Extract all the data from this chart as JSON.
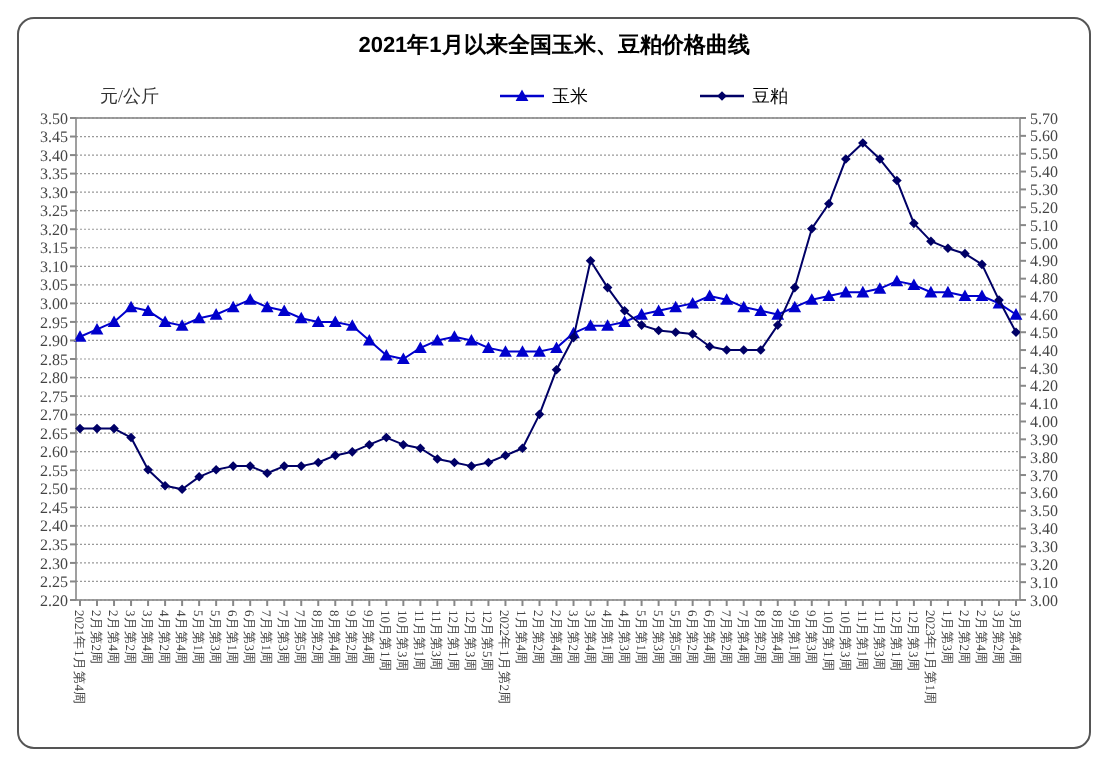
{
  "chart_data": {
    "type": "line",
    "title": "2021年1月以来全国玉米、豆粕价格曲线",
    "ylabel": "元/公斤",
    "categories": [
      "2021年1月第4周",
      "2月第2周",
      "2月第4周",
      "3月第2周",
      "3月第4周",
      "4月第2周",
      "4月第4周",
      "5月第1周",
      "5月第3周",
      "6月第1周",
      "6月第3周",
      "7月第1周",
      "7月第3周",
      "7月第5周",
      "8月第2周",
      "8月第4周",
      "9月第2周",
      "9月第4周",
      "10月第1周",
      "10月第3周",
      "11月第1周",
      "11月第3周",
      "12月第1周",
      "12月第3周",
      "12月第5周",
      "2022年1月第2周",
      "1月第4周",
      "2月第2周",
      "2月第4周",
      "3月第2周",
      "3月第4周",
      "4月第1周",
      "4月第3周",
      "5月第1周",
      "5月第3周",
      "5月第5周",
      "6月第2周",
      "6月第4周",
      "7月第2周",
      "7月第4周",
      "8月第2周",
      "8月第4周",
      "9月第1周",
      "9月第3周",
      "10月第1周",
      "10月第3周",
      "11月第1周",
      "11月第3周",
      "12月第1周",
      "12月第3周",
      "2023年1月第1周",
      "1月第3周",
      "2月第2周",
      "2月第4周",
      "3月第2周",
      "3月第4周"
    ],
    "series": [
      {
        "name": "玉米",
        "color": "#0000cc",
        "marker": "triangle",
        "values": [
          2.91,
          2.93,
          2.95,
          2.99,
          2.98,
          2.95,
          2.94,
          2.96,
          2.97,
          2.99,
          3.01,
          2.99,
          2.98,
          2.96,
          2.95,
          2.95,
          2.94,
          2.9,
          2.86,
          2.85,
          2.88,
          2.9,
          2.91,
          2.9,
          2.88,
          2.87,
          2.87,
          2.87,
          2.88,
          2.92,
          2.94,
          2.94,
          2.95,
          2.97,
          2.98,
          2.99,
          3.0,
          3.02,
          3.01,
          2.99,
          2.98,
          2.97,
          2.99,
          3.01,
          3.02,
          3.03,
          3.03,
          3.04,
          3.06,
          3.05,
          3.03,
          3.03,
          3.02,
          3.02,
          3.0,
          2.97
        ]
      },
      {
        "name": "豆粕",
        "color": "#000066",
        "marker": "diamond",
        "axis": "y2",
        "values": [
          3.96,
          3.96,
          3.96,
          3.91,
          3.73,
          3.64,
          3.62,
          3.69,
          3.73,
          3.75,
          3.75,
          3.71,
          3.75,
          3.75,
          3.77,
          3.81,
          3.83,
          3.87,
          3.91,
          3.87,
          3.85,
          3.79,
          3.77,
          3.75,
          3.77,
          3.81,
          3.85,
          4.04,
          4.29,
          4.47,
          4.9,
          4.75,
          4.62,
          4.54,
          4.51,
          4.5,
          4.49,
          4.42,
          4.4,
          4.4,
          4.4,
          4.54,
          4.75,
          5.08,
          5.22,
          5.47,
          5.56,
          5.47,
          5.35,
          5.11,
          5.01,
          4.97,
          4.94,
          4.88,
          4.68,
          4.5
        ]
      }
    ],
    "ylim": [
      2.2,
      3.5
    ],
    "yticks": [
      {
        "value": 2.2,
        "label": "2.20"
      },
      {
        "value": 2.25,
        "label": "2.25"
      },
      {
        "value": 2.3,
        "label": "2.30"
      },
      {
        "value": 2.35,
        "label": "2.35"
      },
      {
        "value": 2.4,
        "label": "2.40"
      },
      {
        "value": 2.45,
        "label": "2.45"
      },
      {
        "value": 2.5,
        "label": "2.50"
      },
      {
        "value": 2.55,
        "label": "2.55"
      },
      {
        "value": 2.6,
        "label": "2.60"
      },
      {
        "value": 2.65,
        "label": "2.65"
      },
      {
        "value": 2.7,
        "label": "2.70"
      },
      {
        "value": 2.75,
        "label": "2.75"
      },
      {
        "value": 2.8,
        "label": "2.80"
      },
      {
        "value": 2.85,
        "label": "2.85"
      },
      {
        "value": 2.9,
        "label": "2.90"
      },
      {
        "value": 2.95,
        "label": "2.95"
      },
      {
        "value": 3.0,
        "label": "3.00"
      },
      {
        "value": 3.05,
        "label": "3.05"
      },
      {
        "value": 3.1,
        "label": "3.10"
      },
      {
        "value": 3.15,
        "label": "3.15"
      },
      {
        "value": 3.2,
        "label": "3.20"
      },
      {
        "value": 3.25,
        "label": "3.25"
      },
      {
        "value": 3.3,
        "label": "3.30"
      },
      {
        "value": 3.35,
        "label": "3.35"
      },
      {
        "value": 3.4,
        "label": "3.40"
      },
      {
        "value": 3.45,
        "label": "3.45"
      },
      {
        "value": 3.5,
        "label": "3.50"
      }
    ],
    "y2lim": [
      3.0,
      5.7
    ],
    "y2ticks": [
      {
        "value": 3.0,
        "label": "3.00"
      },
      {
        "value": 3.1,
        "label": "3.10"
      },
      {
        "value": 3.2,
        "label": "3.20"
      },
      {
        "value": 3.3,
        "label": "3.30"
      },
      {
        "value": 3.4,
        "label": "3.40"
      },
      {
        "value": 3.5,
        "label": "3.50"
      },
      {
        "value": 3.6,
        "label": "3.60"
      },
      {
        "value": 3.7,
        "label": "3.70"
      },
      {
        "value": 3.8,
        "label": "3.80"
      },
      {
        "value": 3.9,
        "label": "3.90"
      },
      {
        "value": 4.0,
        "label": "4.00"
      },
      {
        "value": 4.1,
        "label": "4.10"
      },
      {
        "value": 4.2,
        "label": "4.20"
      },
      {
        "value": 4.3,
        "label": "4.30"
      },
      {
        "value": 4.4,
        "label": "4.40"
      },
      {
        "value": 4.5,
        "label": "4.50"
      },
      {
        "value": 4.6,
        "label": "4.60"
      },
      {
        "value": 4.7,
        "label": "4.70"
      },
      {
        "value": 4.8,
        "label": "4.80"
      },
      {
        "value": 4.9,
        "label": "4.90"
      },
      {
        "value": 5.0,
        "label": "5.00"
      },
      {
        "value": 5.1,
        "label": "5.10"
      },
      {
        "value": 5.2,
        "label": "5.20"
      },
      {
        "value": 5.3,
        "label": "5.30"
      },
      {
        "value": 5.4,
        "label": "5.40"
      },
      {
        "value": 5.5,
        "label": "5.50"
      },
      {
        "value": 5.6,
        "label": "5.60"
      },
      {
        "value": 5.7,
        "label": "5.70"
      }
    ],
    "grid": "y",
    "legend": "top"
  }
}
